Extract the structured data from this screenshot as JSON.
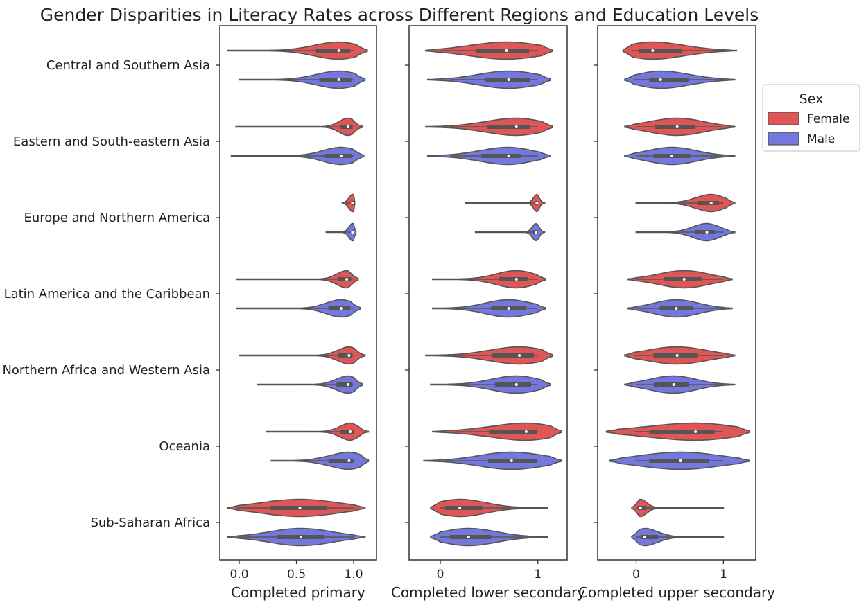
{
  "chart_data": {
    "type": "violin",
    "title": "Gender Disparities in Literacy Rates across Different Regions and Education Levels",
    "categories": [
      "Central and Southern Asia",
      "Eastern and South-eastern Asia",
      "Europe and Northern America",
      "Latin America and the Caribbean",
      "Northern Africa and Western Asia",
      "Oceania",
      "Sub-Saharan Africa"
    ],
    "legend": {
      "title": "Sex",
      "placement": "right",
      "entries": [
        {
          "label": "Female",
          "color": "#e05656"
        },
        {
          "label": "Male",
          "color": "#7478dc"
        }
      ]
    },
    "panels": [
      {
        "xlabel": "Completed primary",
        "xlim": [
          -0.17,
          1.2
        ],
        "xticks": [
          0.0,
          0.5,
          1.0
        ],
        "xtick_labels": [
          "0.0",
          "0.5",
          "1.0"
        ],
        "series": [
          {
            "name": "Female",
            "stats": [
              {
                "min": 0.12,
                "q1": 0.67,
                "median": 0.87,
                "q3": 0.97,
                "max": 1.0,
                "wlo": -0.1,
                "whi": 1.12
              },
              {
                "min": 0.3,
                "q1": 0.88,
                "median": 0.95,
                "q3": 0.99,
                "max": 1.0,
                "wlo": -0.03,
                "whi": 1.08
              },
              {
                "min": 0.93,
                "q1": 0.98,
                "median": 0.99,
                "q3": 1.0,
                "max": 1.0,
                "wlo": 0.9,
                "whi": 1.01
              },
              {
                "min": 0.35,
                "q1": 0.86,
                "median": 0.94,
                "q3": 0.98,
                "max": 1.0,
                "wlo": -0.02,
                "whi": 1.04
              },
              {
                "min": 0.3,
                "q1": 0.86,
                "median": 0.96,
                "q3": 0.99,
                "max": 1.0,
                "wlo": 0.0,
                "whi": 1.1
              },
              {
                "min": 0.6,
                "q1": 0.88,
                "median": 0.97,
                "q3": 1.0,
                "max": 1.0,
                "wlo": 0.24,
                "whi": 1.13
              },
              {
                "min": -0.02,
                "q1": 0.27,
                "median": 0.53,
                "q3": 0.77,
                "max": 1.0,
                "wlo": -0.1,
                "whi": 1.1
              }
            ]
          },
          {
            "name": "Male",
            "stats": [
              {
                "min": 0.4,
                "q1": 0.7,
                "median": 0.87,
                "q3": 0.98,
                "max": 1.0,
                "wlo": 0.0,
                "whi": 1.1
              },
              {
                "min": 0.35,
                "q1": 0.75,
                "median": 0.89,
                "q3": 0.98,
                "max": 1.0,
                "wlo": -0.07,
                "whi": 1.09
              },
              {
                "min": 0.88,
                "q1": 0.98,
                "median": 0.99,
                "q3": 1.0,
                "max": 1.0,
                "wlo": 0.76,
                "whi": 1.02
              },
              {
                "min": 0.4,
                "q1": 0.78,
                "median": 0.89,
                "q3": 0.97,
                "max": 1.0,
                "wlo": -0.02,
                "whi": 1.06
              },
              {
                "min": 0.5,
                "q1": 0.85,
                "median": 0.95,
                "q3": 0.99,
                "max": 1.0,
                "wlo": 0.16,
                "whi": 1.08
              },
              {
                "min": 0.55,
                "q1": 0.78,
                "median": 0.96,
                "q3": 1.0,
                "max": 1.0,
                "wlo": 0.28,
                "whi": 1.13
              },
              {
                "min": -0.02,
                "q1": 0.33,
                "median": 0.54,
                "q3": 0.74,
                "max": 1.0,
                "wlo": -0.1,
                "whi": 1.1
              }
            ]
          }
        ]
      },
      {
        "xlabel": "Completed lower secondary",
        "xlim": [
          -0.32,
          1.3
        ],
        "xticks": [
          0,
          1
        ],
        "xtick_labels": [
          "0",
          "1"
        ],
        "series": [
          {
            "name": "Female",
            "stats": [
              {
                "min": 0.0,
                "q1": 0.37,
                "median": 0.68,
                "q3": 0.91,
                "max": 1.0,
                "wlo": -0.15,
                "whi": 1.15
              },
              {
                "min": 0.1,
                "q1": 0.48,
                "median": 0.78,
                "q3": 0.92,
                "max": 1.0,
                "wlo": -0.15,
                "whi": 1.15
              },
              {
                "min": 0.28,
                "q1": 0.97,
                "median": 0.99,
                "q3": 1.0,
                "max": 1.0,
                "wlo": 0.26,
                "whi": 1.07
              },
              {
                "min": 0.1,
                "q1": 0.6,
                "median": 0.78,
                "q3": 0.9,
                "max": 1.0,
                "wlo": -0.08,
                "whi": 1.08
              },
              {
                "min": 0.05,
                "q1": 0.53,
                "median": 0.81,
                "q3": 0.96,
                "max": 1.0,
                "wlo": -0.15,
                "whi": 1.15
              },
              {
                "min": 0.15,
                "q1": 0.5,
                "median": 0.88,
                "q3": 0.99,
                "max": 1.0,
                "wlo": -0.08,
                "whi": 1.24
              },
              {
                "min": 0.0,
                "q1": 0.05,
                "median": 0.2,
                "q3": 0.43,
                "max": 1.0,
                "wlo": -0.1,
                "whi": 1.1
              }
            ]
          },
          {
            "name": "Male",
            "stats": [
              {
                "min": 0.1,
                "q1": 0.46,
                "median": 0.7,
                "q3": 0.92,
                "max": 1.0,
                "wlo": -0.13,
                "whi": 1.13
              },
              {
                "min": 0.1,
                "q1": 0.42,
                "median": 0.7,
                "q3": 0.83,
                "max": 1.0,
                "wlo": -0.13,
                "whi": 1.13
              },
              {
                "min": 0.38,
                "q1": 0.95,
                "median": 0.98,
                "q3": 1.0,
                "max": 1.0,
                "wlo": 0.36,
                "whi": 1.07
              },
              {
                "min": 0.05,
                "q1": 0.52,
                "median": 0.7,
                "q3": 0.88,
                "max": 1.0,
                "wlo": -0.08,
                "whi": 1.08
              },
              {
                "min": 0.05,
                "q1": 0.56,
                "median": 0.78,
                "q3": 0.93,
                "max": 1.0,
                "wlo": -0.1,
                "whi": 1.13
              },
              {
                "min": 0.05,
                "q1": 0.49,
                "median": 0.73,
                "q3": 0.99,
                "max": 1.0,
                "wlo": -0.17,
                "whi": 1.24
              },
              {
                "min": 0.0,
                "q1": 0.1,
                "median": 0.29,
                "q3": 0.52,
                "max": 1.0,
                "wlo": -0.1,
                "whi": 1.1
              }
            ]
          }
        ]
      },
      {
        "xlabel": "Completed upper secondary",
        "xlim": [
          -0.44,
          1.37
        ],
        "xticks": [
          0,
          1
        ],
        "xtick_labels": [
          "0",
          "1"
        ],
        "series": [
          {
            "name": "Female",
            "stats": [
              {
                "min": -0.05,
                "q1": 0.03,
                "median": 0.19,
                "q3": 0.53,
                "max": 1.0,
                "wlo": -0.15,
                "whi": 1.15
              },
              {
                "min": 0.0,
                "q1": 0.22,
                "median": 0.47,
                "q3": 0.68,
                "max": 1.0,
                "wlo": -0.13,
                "whi": 1.13
              },
              {
                "min": 0.35,
                "q1": 0.7,
                "median": 0.86,
                "q3": 0.95,
                "max": 1.0,
                "wlo": 0.0,
                "whi": 1.13
              },
              {
                "min": 0.0,
                "q1": 0.32,
                "median": 0.55,
                "q3": 0.75,
                "max": 1.0,
                "wlo": -0.1,
                "whi": 1.1
              },
              {
                "min": -0.03,
                "q1": 0.2,
                "median": 0.47,
                "q3": 0.7,
                "max": 1.0,
                "wlo": -0.13,
                "whi": 1.13
              },
              {
                "min": -0.03,
                "q1": 0.15,
                "median": 0.68,
                "q3": 0.9,
                "max": 1.0,
                "wlo": -0.34,
                "whi": 1.3
              },
              {
                "min": 0.0,
                "q1": 0.02,
                "median": 0.05,
                "q3": 0.12,
                "max": 1.0,
                "wlo": -0.05,
                "whi": 1.0
              }
            ]
          },
          {
            "name": "Male",
            "stats": [
              {
                "min": -0.03,
                "q1": 0.15,
                "median": 0.28,
                "q3": 0.6,
                "max": 1.0,
                "wlo": -0.13,
                "whi": 1.13
              },
              {
                "min": 0.0,
                "q1": 0.2,
                "median": 0.41,
                "q3": 0.62,
                "max": 1.0,
                "wlo": -0.13,
                "whi": 1.13
              },
              {
                "min": 0.38,
                "q1": 0.67,
                "median": 0.81,
                "q3": 0.9,
                "max": 1.0,
                "wlo": 0.0,
                "whi": 1.13
              },
              {
                "min": 0.0,
                "q1": 0.27,
                "median": 0.46,
                "q3": 0.65,
                "max": 1.0,
                "wlo": -0.1,
                "whi": 1.1
              },
              {
                "min": 0.0,
                "q1": 0.2,
                "median": 0.43,
                "q3": 0.6,
                "max": 1.0,
                "wlo": -0.13,
                "whi": 1.13
              },
              {
                "min": 0.0,
                "q1": 0.15,
                "median": 0.51,
                "q3": 0.83,
                "max": 1.0,
                "wlo": -0.3,
                "whi": 1.3
              },
              {
                "min": 0.0,
                "q1": 0.05,
                "median": 0.1,
                "q3": 0.25,
                "max": 1.0,
                "wlo": -0.05,
                "whi": 1.0
              }
            ]
          }
        ]
      }
    ]
  }
}
